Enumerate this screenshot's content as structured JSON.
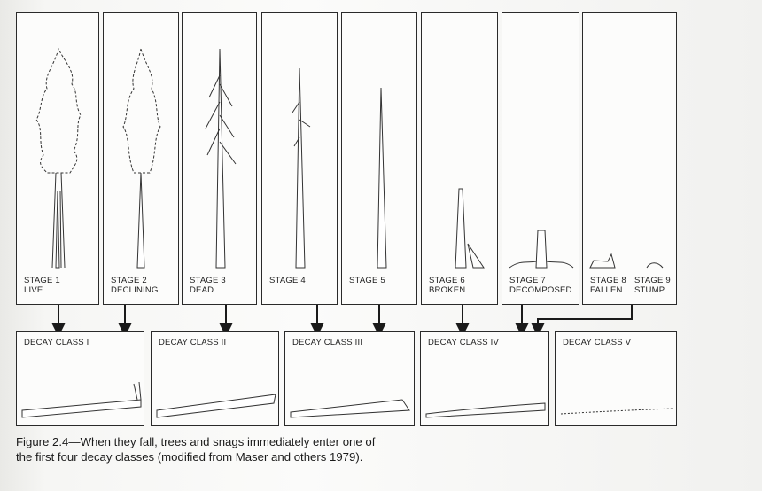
{
  "stages": [
    {
      "line1": "STAGE 1",
      "line2": "LIVE"
    },
    {
      "line1": "STAGE 2",
      "line2": "DECLINING"
    },
    {
      "line1": "STAGE 3",
      "line2": "DEAD"
    },
    {
      "line1": "STAGE 4",
      "line2": ""
    },
    {
      "line1": "STAGE 5",
      "line2": ""
    },
    {
      "line1": "STAGE 6",
      "line2": "BROKEN"
    },
    {
      "line1": "STAGE 7",
      "line2": "DECOMPOSED"
    },
    {
      "line1": "STAGE 8",
      "line2": "FALLEN"
    },
    {
      "line1": "STAGE 9",
      "line2": "STUMP"
    }
  ],
  "decay_classes": [
    "DECAY CLASS I",
    "DECAY CLASS II",
    "DECAY CLASS III",
    "DECAY CLASS IV",
    "DECAY CLASS V"
  ],
  "caption": {
    "line1": "Figure 2.4—When they fall, trees and snags immediately enter one of",
    "line2": "the first four decay classes (modified from Maser and others 1979)."
  }
}
